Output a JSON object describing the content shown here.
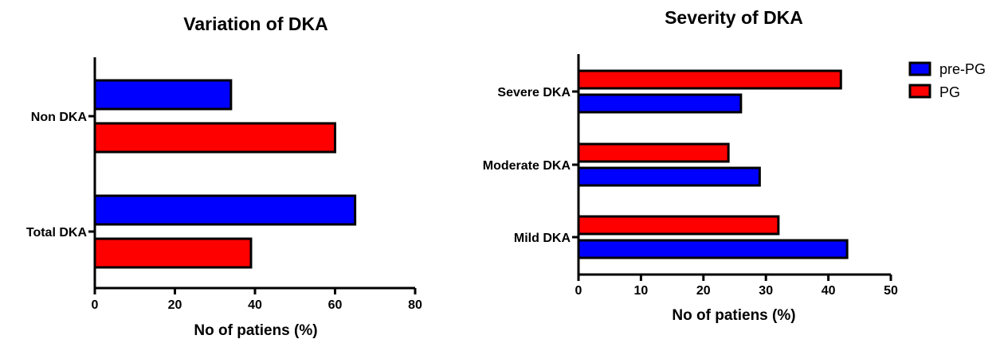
{
  "chart_data": [
    {
      "type": "bar",
      "orientation": "horizontal",
      "title": "Variation of DKA",
      "xlabel": "No of patiens (%)",
      "ylabel": "",
      "categories": [
        "Non DKA",
        "Total DKA"
      ],
      "series": [
        {
          "name": "pre-PG",
          "color": "#0000ff",
          "values": [
            34,
            65
          ]
        },
        {
          "name": "PG",
          "color": "#ff0000",
          "values": [
            60,
            39
          ]
        }
      ],
      "xlim": [
        0,
        80
      ],
      "xticks": [
        "0",
        "20",
        "40",
        "60",
        "80"
      ],
      "xtick_values": [
        0,
        20,
        40,
        60,
        80
      ],
      "grid": false
    },
    {
      "type": "bar",
      "orientation": "horizontal",
      "title": "Severity of DKA",
      "xlabel": "No of patiens (%)",
      "ylabel": "",
      "categories": [
        "Severe DKA",
        "Moderate DKA",
        "Mild DKA"
      ],
      "series": [
        {
          "name": "pre-PG",
          "color": "#0000ff",
          "values": [
            26,
            29,
            43
          ]
        },
        {
          "name": "PG",
          "color": "#ff0000",
          "values": [
            42,
            24,
            32
          ]
        }
      ],
      "xlim": [
        0,
        50
      ],
      "xticks": [
        "0",
        "10",
        "20",
        "30",
        "40",
        "50"
      ],
      "xtick_values": [
        0,
        10,
        20,
        30,
        40,
        50
      ],
      "grid": false,
      "legend": {
        "position": "top-right",
        "entries": [
          "pre-PG",
          "PG"
        ]
      }
    }
  ]
}
